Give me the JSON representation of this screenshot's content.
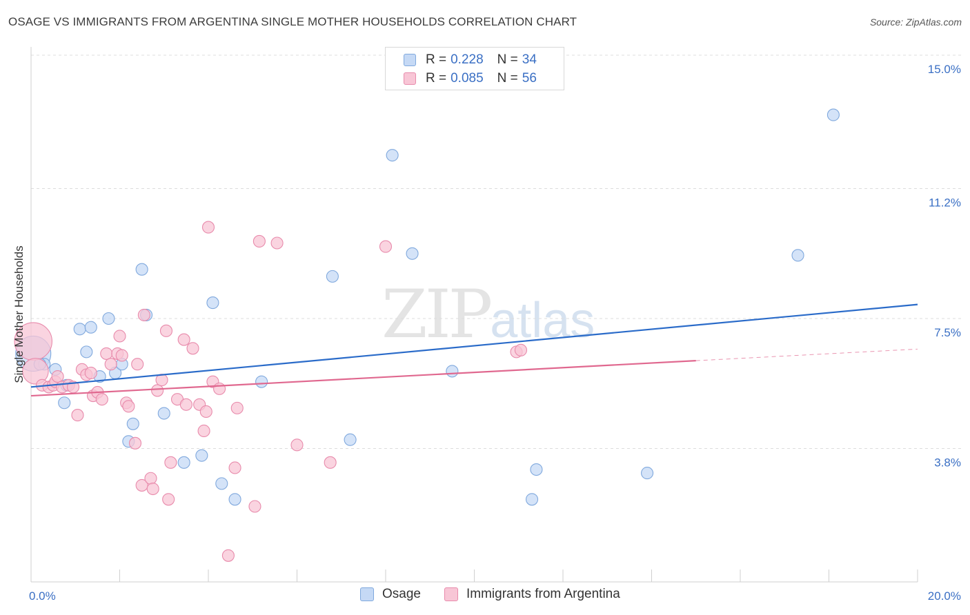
{
  "header": {
    "title": "OSAGE VS IMMIGRANTS FROM ARGENTINA SINGLE MOTHER HOUSEHOLDS CORRELATION CHART",
    "source": "Source: ZipAtlas.com"
  },
  "watermark": {
    "zip": "ZIP",
    "atlas": "atlas"
  },
  "legend": {
    "rows": [
      {
        "r_label": "R =",
        "r_value": "0.228",
        "n_label": "N =",
        "n_value": "34"
      },
      {
        "r_label": "R =",
        "r_value": "0.085",
        "n_label": "N =",
        "n_value": "56"
      }
    ]
  },
  "colors": {
    "osage_fill": "#c5d9f5",
    "osage_stroke": "#7fa8dd",
    "osage_line": "#2a6bc9",
    "argentina_fill": "#f8c6d6",
    "argentina_stroke": "#e88aab",
    "argentina_line": "#e0688f",
    "axis_label": "#3a6fc4",
    "grid": "#dcdcdc"
  },
  "chart_data": {
    "type": "scatter",
    "title": "OSAGE VS IMMIGRANTS FROM ARGENTINA SINGLE MOTHER HOUSEHOLDS CORRELATION CHART",
    "xlabel": "",
    "ylabel": "Single Mother Households",
    "xlim": [
      0,
      20
    ],
    "ylim": [
      0,
      15
    ],
    "x_tick_labels": [
      "0.0%",
      "20.0%"
    ],
    "y_ticks": [
      3.8,
      7.5,
      11.2,
      15.0
    ],
    "y_tick_labels": [
      "3.8%",
      "7.5%",
      "11.2%",
      "15.0%"
    ],
    "grid": "horizontal-dashed",
    "legend_position": "top-center",
    "series": [
      {
        "name": "Osage",
        "r": 0.228,
        "n": 34,
        "trend": {
          "x": [
            0,
            20
          ],
          "y": [
            5.55,
            7.9
          ]
        },
        "points": [
          [
            0.05,
            6.5,
            30
          ],
          [
            0.3,
            6.2,
            10
          ],
          [
            0.55,
            6.05,
            10
          ],
          [
            0.8,
            5.6,
            10
          ],
          [
            0.75,
            5.1,
            10
          ],
          [
            1.1,
            7.2,
            10
          ],
          [
            1.25,
            6.55,
            10
          ],
          [
            1.35,
            7.25,
            10
          ],
          [
            1.55,
            5.85,
            10
          ],
          [
            1.75,
            7.5,
            10
          ],
          [
            1.9,
            5.95,
            10
          ],
          [
            2.05,
            6.2,
            10
          ],
          [
            2.2,
            4.0,
            10
          ],
          [
            2.3,
            4.5,
            10
          ],
          [
            2.5,
            8.9,
            10
          ],
          [
            2.6,
            7.6,
            10
          ],
          [
            3.0,
            4.8,
            10
          ],
          [
            3.45,
            3.4,
            10
          ],
          [
            3.85,
            3.6,
            10
          ],
          [
            4.1,
            7.95,
            10
          ],
          [
            4.3,
            2.8,
            10
          ],
          [
            4.6,
            2.35,
            10
          ],
          [
            5.2,
            5.7,
            10
          ],
          [
            6.8,
            8.7,
            10
          ],
          [
            7.2,
            4.05,
            10
          ],
          [
            8.15,
            12.15,
            10
          ],
          [
            8.6,
            9.35,
            10
          ],
          [
            9.5,
            6.0,
            10
          ],
          [
            11.4,
            3.2,
            10
          ],
          [
            11.3,
            2.35,
            10
          ],
          [
            13.9,
            3.1,
            10
          ],
          [
            17.3,
            9.3,
            10
          ],
          [
            18.1,
            13.3,
            10
          ],
          [
            0.2,
            6.2,
            10
          ]
        ]
      },
      {
        "name": "Immigrants from Argentina",
        "r": 0.085,
        "n": 56,
        "trend": {
          "x": [
            0,
            15
          ],
          "y": [
            5.3,
            6.3
          ]
        },
        "trend_dashed": {
          "x": [
            15,
            20
          ],
          "y": [
            6.3,
            6.63
          ]
        },
        "points": [
          [
            0.05,
            6.85,
            32
          ],
          [
            0.1,
            6.0,
            22
          ],
          [
            0.25,
            5.6,
            10
          ],
          [
            0.4,
            5.55,
            10
          ],
          [
            0.5,
            5.6,
            10
          ],
          [
            0.55,
            5.7,
            10
          ],
          [
            0.6,
            5.85,
            10
          ],
          [
            0.7,
            5.55,
            10
          ],
          [
            0.85,
            5.6,
            10
          ],
          [
            0.95,
            5.55,
            10
          ],
          [
            1.05,
            4.75,
            10
          ],
          [
            1.15,
            6.05,
            10
          ],
          [
            1.25,
            5.9,
            10
          ],
          [
            1.35,
            5.95,
            10
          ],
          [
            1.4,
            5.3,
            10
          ],
          [
            1.5,
            5.4,
            10
          ],
          [
            1.6,
            5.2,
            10
          ],
          [
            1.7,
            6.5,
            10
          ],
          [
            1.8,
            6.2,
            10
          ],
          [
            1.95,
            6.5,
            10
          ],
          [
            2.0,
            7.0,
            10
          ],
          [
            2.05,
            6.45,
            10
          ],
          [
            2.15,
            5.1,
            10
          ],
          [
            2.2,
            5.0,
            10
          ],
          [
            2.35,
            3.95,
            10
          ],
          [
            2.4,
            6.2,
            10
          ],
          [
            2.5,
            2.75,
            10
          ],
          [
            2.55,
            7.6,
            10
          ],
          [
            2.7,
            2.95,
            10
          ],
          [
            2.75,
            2.65,
            10
          ],
          [
            2.85,
            5.45,
            10
          ],
          [
            2.95,
            5.75,
            10
          ],
          [
            3.05,
            7.15,
            10
          ],
          [
            3.1,
            2.35,
            10
          ],
          [
            3.15,
            3.4,
            10
          ],
          [
            3.3,
            5.2,
            10
          ],
          [
            3.45,
            6.9,
            10
          ],
          [
            3.5,
            5.05,
            10
          ],
          [
            3.65,
            6.65,
            10
          ],
          [
            3.8,
            5.05,
            10
          ],
          [
            3.9,
            4.3,
            10
          ],
          [
            3.95,
            4.85,
            10
          ],
          [
            4.0,
            10.1,
            10
          ],
          [
            4.1,
            5.7,
            10
          ],
          [
            4.25,
            5.5,
            10
          ],
          [
            4.45,
            0.75,
            10
          ],
          [
            4.6,
            3.25,
            10
          ],
          [
            4.65,
            4.95,
            10
          ],
          [
            5.05,
            2.15,
            10
          ],
          [
            5.15,
            9.7,
            10
          ],
          [
            5.55,
            9.65,
            10
          ],
          [
            6.0,
            3.9,
            10
          ],
          [
            6.75,
            3.4,
            10
          ],
          [
            8.0,
            9.55,
            10
          ],
          [
            10.95,
            6.55,
            10
          ],
          [
            11.05,
            6.6,
            10
          ]
        ]
      }
    ]
  },
  "bottom_legend": {
    "items": [
      {
        "label": "Osage"
      },
      {
        "label": "Immigrants from Argentina"
      }
    ]
  }
}
